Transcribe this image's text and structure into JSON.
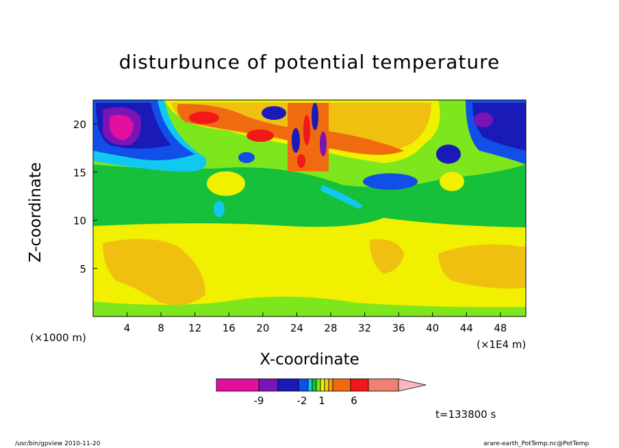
{
  "chart_data": {
    "type": "heatmap",
    "title": "disturbunce of potential temperature",
    "xlabel": "X-coordinate",
    "ylabel": "Z-coordinate",
    "x_unit_left": "(×1000 m)",
    "x_unit_right": "(×1E4 m)",
    "x_ticks": [
      "4",
      "8",
      "12",
      "16",
      "20",
      "24",
      "28",
      "32",
      "36",
      "40",
      "44",
      "48"
    ],
    "y_ticks": [
      "5",
      "10",
      "15",
      "20"
    ],
    "xlim": [
      0,
      51
    ],
    "ylim": [
      0,
      22.5
    ],
    "colorbar": {
      "colors": [
        "#e0109c",
        "#7b13b5",
        "#1a1ab8",
        "#1150e8",
        "#11c8f0",
        "#16c03a",
        "#7ee61c",
        "#f0f000",
        "#f0d010",
        "#f0a010",
        "#f06a10",
        "#f01818",
        "#f08070",
        "#f8b8c0"
      ],
      "tick_labels": [
        "-9",
        "-2",
        "1",
        "6"
      ]
    },
    "time_label": "t=133800 s"
  },
  "footer": {
    "left": "/usr/bin/gpview   2010-11-20",
    "right": "arare-earth_PotTemp.nc@PotTemp"
  }
}
